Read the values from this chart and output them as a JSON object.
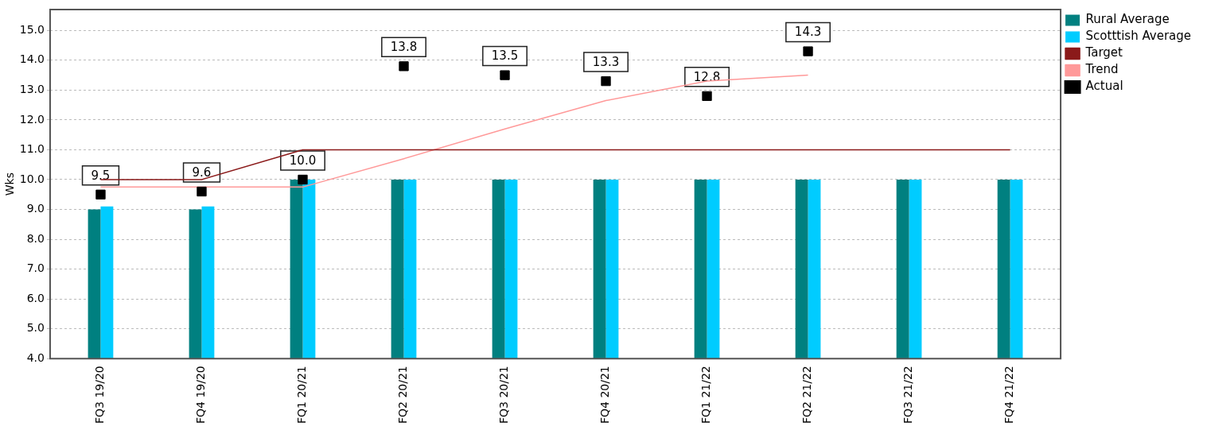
{
  "chart_data": {
    "type": "bar",
    "ylabel": "Wks",
    "categories": [
      "FQ3 19/20",
      "FQ4 19/20",
      "FQ1 20/21",
      "FQ2 20/21",
      "FQ3 20/21",
      "FQ4 20/21",
      "FQ1 21/22",
      "FQ2 21/22",
      "FQ3 21/22",
      "FQ4 21/22"
    ],
    "series": [
      {
        "name": "Rural Average",
        "color": "#008080",
        "values": [
          9.0,
          9.0,
          10.0,
          10.0,
          10.0,
          10.0,
          10.0,
          10.0,
          10.0,
          10.0
        ]
      },
      {
        "name": "Scotttish Average",
        "color": "#00ccff",
        "values": [
          9.1,
          9.1,
          10.0,
          10.0,
          10.0,
          10.0,
          10.0,
          10.0,
          10.0,
          10.0
        ]
      },
      {
        "name": "Target",
        "type": "line",
        "color": "#8b1a1a",
        "values": [
          10.0,
          10.0,
          11.0,
          11.0,
          11.0,
          11.0,
          11.0,
          11.0,
          11.0,
          11.0
        ]
      },
      {
        "name": "Trend",
        "type": "line",
        "color": "#ff9999",
        "values": [
          9.75,
          9.75,
          9.75,
          10.7,
          11.7,
          12.65,
          13.3,
          13.5,
          null,
          null
        ]
      },
      {
        "name": "Actual",
        "type": "scatter",
        "color": "#000000",
        "marker": "square",
        "values": [
          9.5,
          9.6,
          10.0,
          13.8,
          13.5,
          13.3,
          12.8,
          14.3,
          null,
          null
        ],
        "value_labels": [
          "9.5",
          "9.6",
          "10.0",
          "13.8",
          "13.5",
          "13.3",
          "12.8",
          "14.3",
          null,
          null
        ]
      }
    ],
    "ylim": [
      4,
      15.7
    ],
    "yticks": [
      {
        "value": 4,
        "label": "4.0"
      },
      {
        "value": 5,
        "label": "5.0"
      },
      {
        "value": 6,
        "label": "6.0"
      },
      {
        "value": 7,
        "label": "7.0"
      },
      {
        "value": 8,
        "label": "8.0"
      },
      {
        "value": 9,
        "label": "9.0"
      },
      {
        "value": 10,
        "label": "10.0"
      },
      {
        "value": 11,
        "label": "11.0"
      },
      {
        "value": 12,
        "label": "12.0"
      },
      {
        "value": 13,
        "label": "13.0"
      },
      {
        "value": 14,
        "label": "14.0"
      },
      {
        "value": 15,
        "label": "15.0"
      }
    ],
    "grid": "y",
    "legend": "right"
  }
}
